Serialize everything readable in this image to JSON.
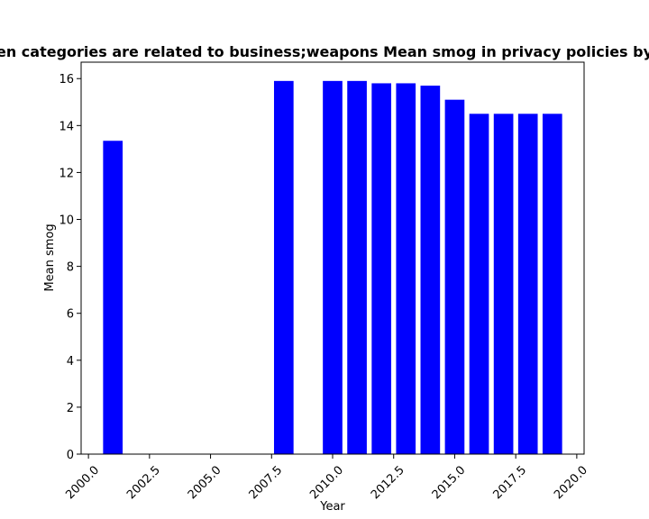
{
  "chart_data": {
    "type": "bar",
    "title": "en categories are related to business;weapons Mean smog in privacy policies by",
    "xlabel": "Year",
    "ylabel": "Mean smog",
    "x": [
      2001,
      2008,
      2010,
      2011,
      2012,
      2013,
      2014,
      2015,
      2016,
      2017,
      2018,
      2019
    ],
    "values": [
      13.35,
      15.9,
      15.9,
      15.9,
      15.8,
      15.8,
      15.7,
      15.1,
      14.5,
      14.5,
      14.5,
      14.5
    ],
    "xlim": [
      1999.7,
      2020.3
    ],
    "ylim": [
      0,
      16.7
    ],
    "xticks": [
      2000.0,
      2002.5,
      2005.0,
      2007.5,
      2010.0,
      2012.5,
      2015.0,
      2017.5,
      2020.0
    ],
    "xtick_labels": [
      "2000.0",
      "2002.5",
      "2005.0",
      "2007.5",
      "2010.0",
      "2012.5",
      "2015.0",
      "2017.5",
      "2020.0"
    ],
    "yticks": [
      0,
      2,
      4,
      6,
      8,
      10,
      12,
      14,
      16
    ],
    "ytick_labels": [
      "0",
      "2",
      "4",
      "6",
      "8",
      "10",
      "12",
      "14",
      "16"
    ],
    "bar_color": "#0000ff",
    "grid": false,
    "legend": "none"
  }
}
